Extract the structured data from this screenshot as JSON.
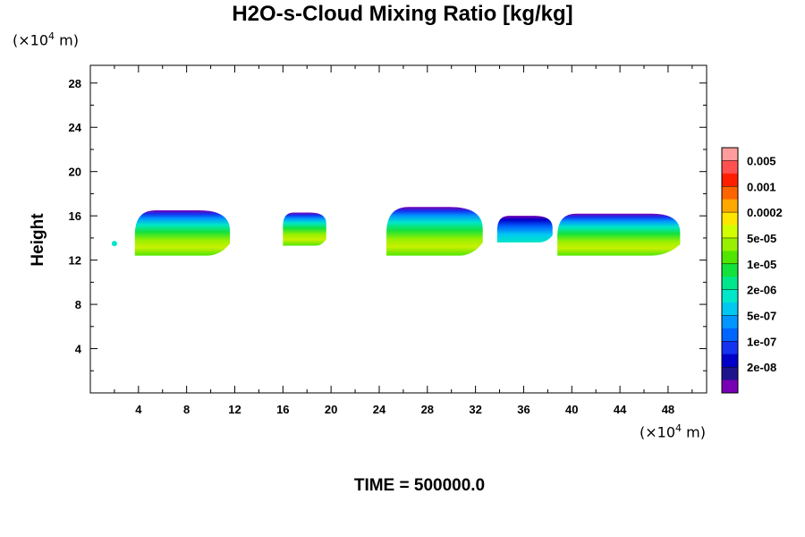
{
  "chart_data": {
    "type": "contour",
    "title": "H2O-s-Cloud Mixing Ratio [kg/kg]",
    "ylabel": "Height",
    "xlabel": "",
    "x_unit_label": "(×10⁴ m)",
    "y_unit_label": "(×10⁴ m)",
    "xlim": [
      0,
      51.2
    ],
    "ylim": [
      0,
      29.6
    ],
    "x_ticks": [
      "4",
      "8",
      "12",
      "16",
      "20",
      "24",
      "28",
      "32",
      "36",
      "40",
      "44",
      "48"
    ],
    "y_ticks": [
      "4",
      "8",
      "12",
      "16",
      "20",
      "24",
      "28"
    ],
    "footer": "TIME = 500000.0",
    "colorbar": {
      "labels": [
        "0.005",
        "0.001",
        "0.0002",
        "5e-05",
        "1e-05",
        "2e-06",
        "5e-07",
        "1e-07",
        "2e-08"
      ],
      "colors": [
        "#ff9c9c",
        "#ff5050",
        "#ff1e00",
        "#ff6400",
        "#ffa800",
        "#ffe600",
        "#d2ff00",
        "#98f000",
        "#50e600",
        "#14e23c",
        "#00e68c",
        "#00e6c8",
        "#00c8f0",
        "#0096ff",
        "#0064ff",
        "#1432f0",
        "#0000c8",
        "#1e148c",
        "#7800b4"
      ]
    },
    "cloud_cells": [
      {
        "x0": 3.7,
        "x1": 11.6,
        "top": 16.5,
        "base": 12.4,
        "peak": "5e-05"
      },
      {
        "x0": 16.0,
        "x1": 19.6,
        "top": 16.3,
        "base": 13.3,
        "peak": "5e-05"
      },
      {
        "x0": 24.6,
        "x1": 32.6,
        "top": 16.8,
        "base": 12.4,
        "peak": "5e-05"
      },
      {
        "x0": 33.8,
        "x1": 38.4,
        "top": 16.0,
        "base": 13.6,
        "peak": "5e-07"
      },
      {
        "x0": 38.8,
        "x1": 49.0,
        "top": 16.2,
        "base": 12.4,
        "peak": "5e-05"
      }
    ]
  }
}
